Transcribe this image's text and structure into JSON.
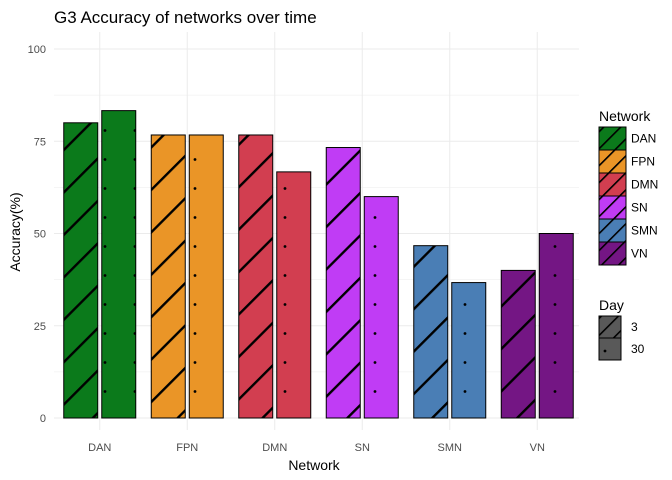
{
  "chart_data": {
    "type": "bar",
    "title": "G3 Accuracy of networks over time",
    "xlabel": "Network",
    "ylabel": "Accuracy(%)",
    "ylim": [
      0,
      100
    ],
    "yticks": [
      0,
      25,
      50,
      75,
      100
    ],
    "grid": true,
    "legend_position": "right",
    "categories": [
      "DAN",
      "FPN",
      "DMN",
      "SN",
      "SMN",
      "VN"
    ],
    "series": [
      {
        "name": "3",
        "pattern": "stripe",
        "values": [
          80,
          76.7,
          76.7,
          73.3,
          46.7,
          40
        ]
      },
      {
        "name": "30",
        "pattern": "dots",
        "values": [
          83.3,
          76.7,
          66.7,
          60,
          36.7,
          50
        ]
      }
    ],
    "colors": {
      "DAN": "#0b7a1b",
      "FPN": "#ea9527",
      "DMN": "#d23e50",
      "SN": "#c03cf5",
      "SMN": "#4a7eb5",
      "VN": "#741684"
    },
    "legend_network": {
      "title": "Network",
      "items": [
        "DAN",
        "FPN",
        "DMN",
        "SN",
        "SMN",
        "VN"
      ]
    },
    "legend_day": {
      "title": "Day",
      "items": [
        "3",
        "30"
      ]
    }
  }
}
